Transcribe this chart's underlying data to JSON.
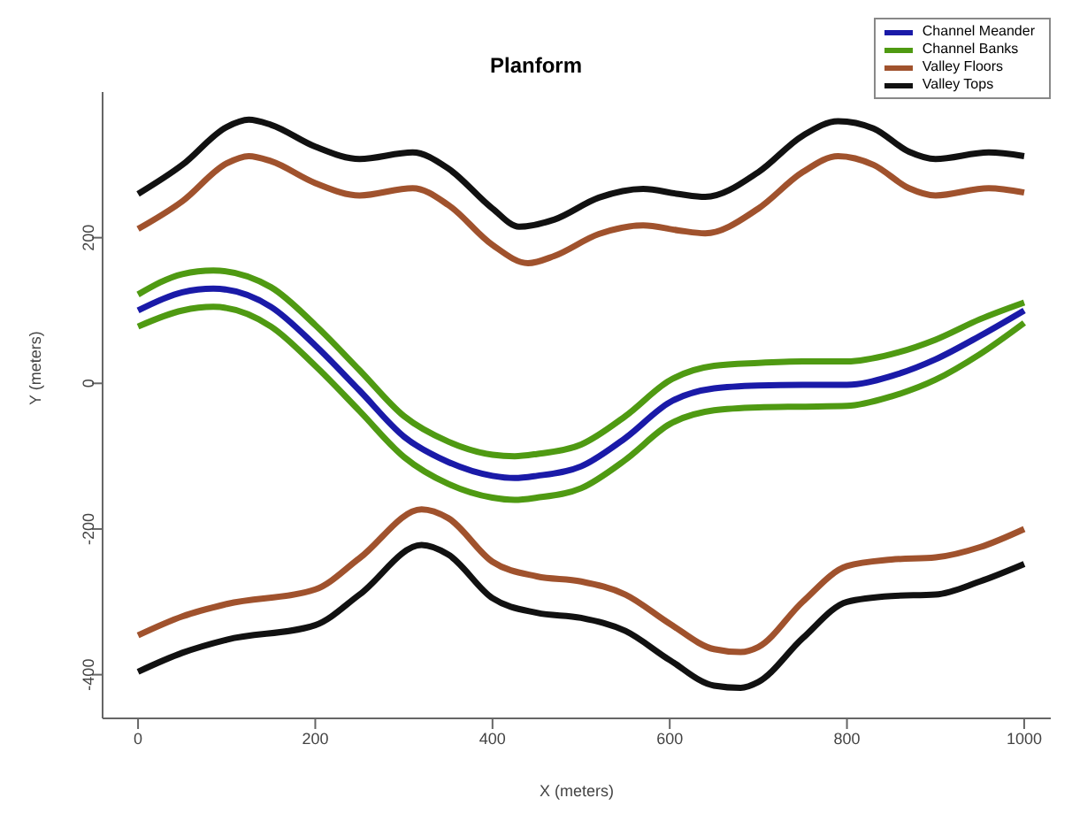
{
  "chart_data": {
    "type": "line",
    "title": "Planform",
    "xlabel": "X (meters)",
    "ylabel": "Y (meters)",
    "xlim": [
      -40,
      1030
    ],
    "ylim": [
      -460,
      400
    ],
    "xticks": [
      0,
      200,
      400,
      600,
      800,
      1000
    ],
    "yticks": [
      -400,
      -200,
      0,
      200
    ],
    "legend": "top right",
    "marker": "none",
    "line_style": "solid",
    "series": [
      {
        "name": "Channel Meander",
        "color": "#1a1aa8",
        "x": [
          0,
          50,
          85,
          150,
          200,
          250,
          300,
          350,
          400,
          425,
          450,
          500,
          550,
          600,
          650,
          700,
          750,
          800,
          850,
          900,
          950,
          1000
        ],
        "values": [
          100,
          125,
          130,
          105,
          52,
          -10,
          -73,
          -108,
          -127,
          -130,
          -127,
          -114,
          -75,
          -26,
          -7,
          -3,
          -2,
          -2,
          10,
          33,
          65,
          100
        ]
      },
      {
        "name": "Channel Banks",
        "color": "#4f9a12",
        "x": [
          0,
          50,
          85,
          150,
          200,
          250,
          300,
          350,
          400,
          425,
          450,
          500,
          550,
          600,
          650,
          700,
          750,
          800,
          850,
          900,
          950,
          1000
        ],
        "values": [
          122,
          150,
          155,
          132,
          80,
          18,
          -45,
          -80,
          -98,
          -100,
          -97,
          -84,
          -45,
          4,
          24,
          28,
          30,
          30,
          40,
          60,
          88,
          111
        ]
      },
      {
        "color": "#4f9a12",
        "x": [
          0,
          50,
          85,
          150,
          200,
          250,
          300,
          350,
          400,
          425,
          450,
          500,
          550,
          600,
          650,
          700,
          750,
          800,
          850,
          900,
          950,
          1000
        ],
        "values": [
          78,
          100,
          105,
          78,
          24,
          -38,
          -101,
          -138,
          -157,
          -160,
          -157,
          -144,
          -105,
          -56,
          -37,
          -33,
          -32,
          -31,
          -18,
          5,
          40,
          83
        ]
      },
      {
        "name": "Valley Floors",
        "color": "#a0522d",
        "x": [
          0,
          50,
          100,
          125,
          150,
          200,
          250,
          310,
          350,
          400,
          440,
          470,
          520,
          570,
          610,
          640,
          700,
          750,
          790,
          830,
          870,
          900,
          960,
          1000
        ],
        "values": [
          212,
          250,
          302,
          312,
          305,
          275,
          258,
          268,
          245,
          190,
          165,
          175,
          205,
          217,
          210,
          206,
          240,
          290,
          312,
          300,
          268,
          258,
          268,
          262
        ]
      },
      {
        "color": "#a0522d",
        "x": [
          0,
          50,
          100,
          200,
          250,
          320,
          350,
          400,
          450,
          500,
          550,
          600,
          650,
          680,
          700,
          750,
          800,
          850,
          900,
          950,
          1000
        ],
        "values": [
          -346,
          -320,
          -303,
          -283,
          -240,
          -173,
          -185,
          -245,
          -265,
          -272,
          -290,
          -330,
          -365,
          -369,
          -362,
          -300,
          -251,
          -242,
          -239,
          -225,
          -200
        ]
      },
      {
        "name": "Valley Tops",
        "color": "#111111",
        "x": [
          0,
          50,
          100,
          125,
          150,
          200,
          250,
          310,
          350,
          400,
          430,
          470,
          520,
          570,
          610,
          640,
          700,
          750,
          790,
          830,
          870,
          900,
          960,
          1000
        ],
        "values": [
          260,
          300,
          352,
          362,
          355,
          325,
          308,
          317,
          295,
          240,
          215,
          225,
          255,
          267,
          260,
          256,
          290,
          340,
          360,
          350,
          318,
          308,
          317,
          312
        ]
      },
      {
        "color": "#111111",
        "x": [
          0,
          50,
          100,
          200,
          250,
          320,
          350,
          400,
          450,
          500,
          550,
          600,
          650,
          680,
          700,
          750,
          800,
          850,
          900,
          950,
          1000
        ],
        "values": [
          -396,
          -370,
          -352,
          -332,
          -290,
          -222,
          -235,
          -295,
          -315,
          -322,
          -340,
          -380,
          -415,
          -418,
          -410,
          -350,
          -300,
          -292,
          -290,
          -272,
          -248
        ]
      }
    ]
  }
}
